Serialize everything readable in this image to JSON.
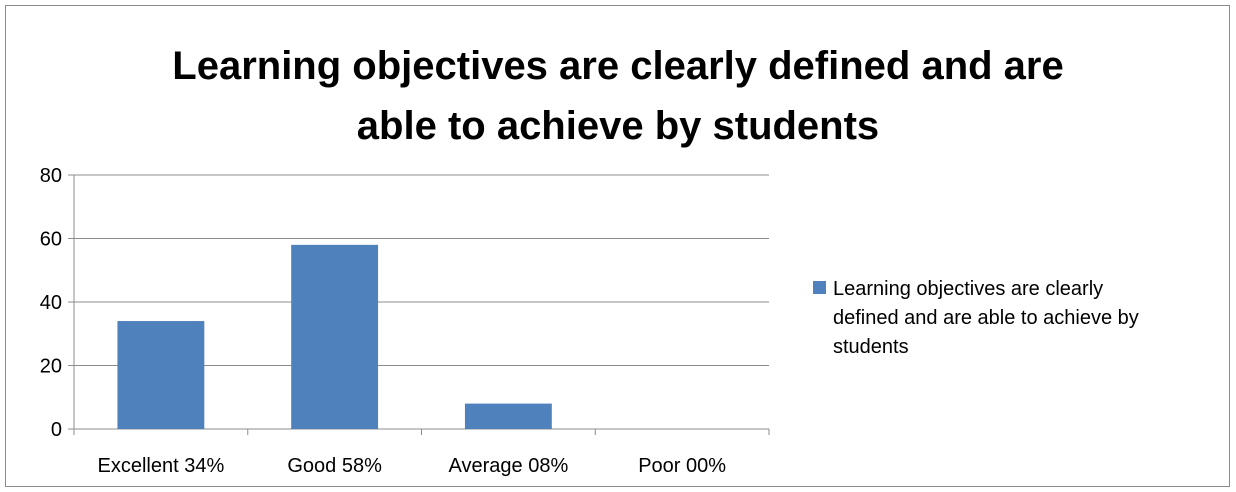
{
  "chart_data": {
    "type": "bar",
    "title": "Learning objectives are clearly defined and are able to achieve by students",
    "title_lines": [
      "Learning objectives are clearly defined and are",
      "able to achieve by students"
    ],
    "categories": [
      "Excellent 34%",
      "Good 58%",
      "Average 08%",
      "Poor 00%"
    ],
    "series": [
      {
        "name": "Learning objectives are clearly defined and are able to achieve by students",
        "name_lines": [
          "Learning objectives are clearly",
          "defined and are able to achieve by",
          "students"
        ],
        "values": [
          34,
          58,
          8,
          0
        ],
        "color": "#4f81bd"
      }
    ],
    "ylim": [
      0,
      80
    ],
    "yticks": [
      0,
      20,
      40,
      60,
      80
    ],
    "grid": true,
    "legend_position": "right",
    "xlabel": "",
    "ylabel": ""
  }
}
